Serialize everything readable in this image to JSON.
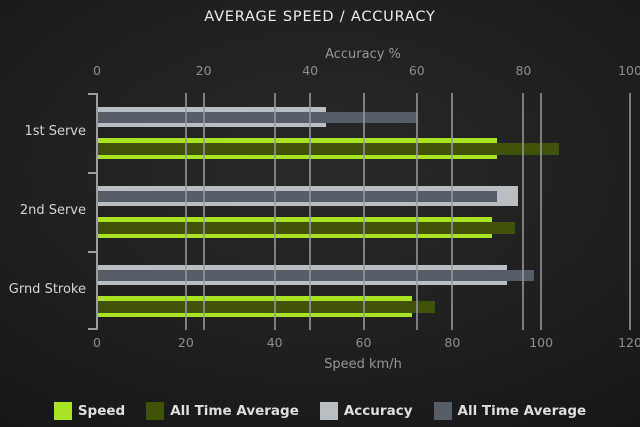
{
  "title": "AVERAGE SPEED / ACCURACY",
  "chart_data": {
    "type": "bar",
    "orientation": "horizontal",
    "categories": [
      "1st Serve",
      "2nd Serve",
      "Grnd Stroke"
    ],
    "series": [
      {
        "name": "Speed",
        "axis": "speed",
        "role": "main",
        "color": "#a8e424",
        "values": [
          90,
          89,
          71
        ]
      },
      {
        "name": "All Time Average",
        "axis": "speed",
        "role": "overlay",
        "color": "#405207",
        "values": [
          104,
          94,
          76
        ]
      },
      {
        "name": "Accuracy",
        "axis": "accuracy",
        "role": "main",
        "color": "#b9bec3",
        "values": [
          43,
          79,
          77
        ]
      },
      {
        "name": "All Time Average",
        "axis": "accuracy",
        "role": "overlay",
        "color": "#565d66",
        "values": [
          60,
          75,
          82
        ]
      }
    ],
    "axes": {
      "top": {
        "label": "Accuracy %",
        "min": 0,
        "max": 100,
        "ticks": [
          0,
          20,
          40,
          60,
          80,
          100
        ]
      },
      "bottom": {
        "label": "Speed km/h",
        "min": 0,
        "max": 120,
        "ticks": [
          0,
          20,
          40,
          60,
          80,
          100,
          120
        ]
      }
    },
    "grid": true,
    "legend_position": "bottom",
    "legend": [
      "Speed",
      "All Time Average",
      "Accuracy",
      "All Time Average"
    ]
  },
  "colors": {
    "background_center": "#292929",
    "background_edge": "#121212",
    "grid": "#96989c",
    "title_text": "#ececec",
    "tick_text": "#8d8d8d",
    "category_text": "#d3d3d3"
  }
}
